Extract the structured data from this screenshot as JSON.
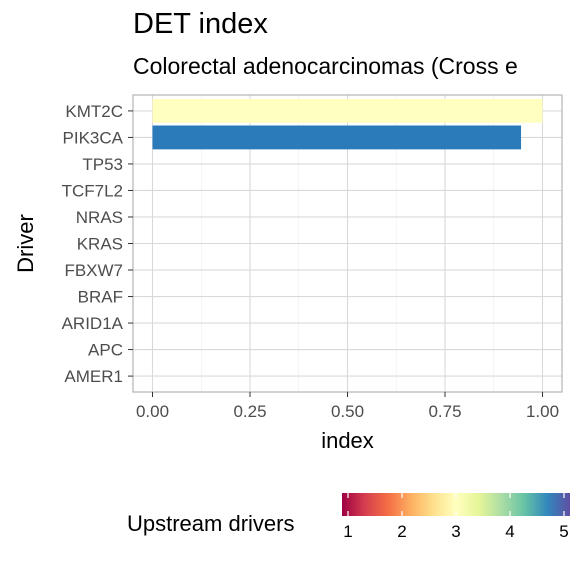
{
  "chart_data": {
    "type": "bar",
    "orientation": "horizontal",
    "title": "DET index",
    "subtitle": "Colorectal adenocarcinomas (Cross e",
    "xlabel": "index",
    "ylabel": "Driver",
    "xlim": [
      0,
      1
    ],
    "x_ticks": [
      "0.00",
      "0.25",
      "0.50",
      "0.75",
      "1.00"
    ],
    "x_tick_values": [
      0,
      0.25,
      0.5,
      0.75,
      1.0
    ],
    "categories": [
      "KMT2C",
      "PIK3CA",
      "TP53",
      "TCF7L2",
      "NRAS",
      "KRAS",
      "FBXW7",
      "BRAF",
      "ARID1A",
      "APC",
      "AMER1"
    ],
    "values": [
      1.0,
      0.945,
      0,
      0,
      0,
      0,
      0,
      0,
      0,
      0,
      0
    ],
    "fill_values": [
      3,
      5,
      null,
      null,
      null,
      null,
      null,
      null,
      null,
      null,
      null
    ],
    "grid": true,
    "legend": {
      "title": "Upstream drivers",
      "position": "bottom",
      "type": "colorbar",
      "range": [
        1,
        5
      ],
      "labels": [
        "1",
        "2",
        "3",
        "4",
        "5"
      ],
      "label_values": [
        1,
        2,
        3,
        4,
        5
      ],
      "palette": [
        "#9e0142",
        "#d53e4f",
        "#f46d43",
        "#fdae61",
        "#fee08b",
        "#ffffbf",
        "#e6f598",
        "#abdda4",
        "#66c2a5",
        "#3288bd",
        "#5e4fa2"
      ]
    },
    "colors": {
      "panel_border": "#b3b3b3",
      "grid_major": "#d9d9d9",
      "grid_minor": "#ededed",
      "bar_kmt2c": "#ffffbf",
      "bar_pik3ca": "#2b7bba"
    }
  }
}
